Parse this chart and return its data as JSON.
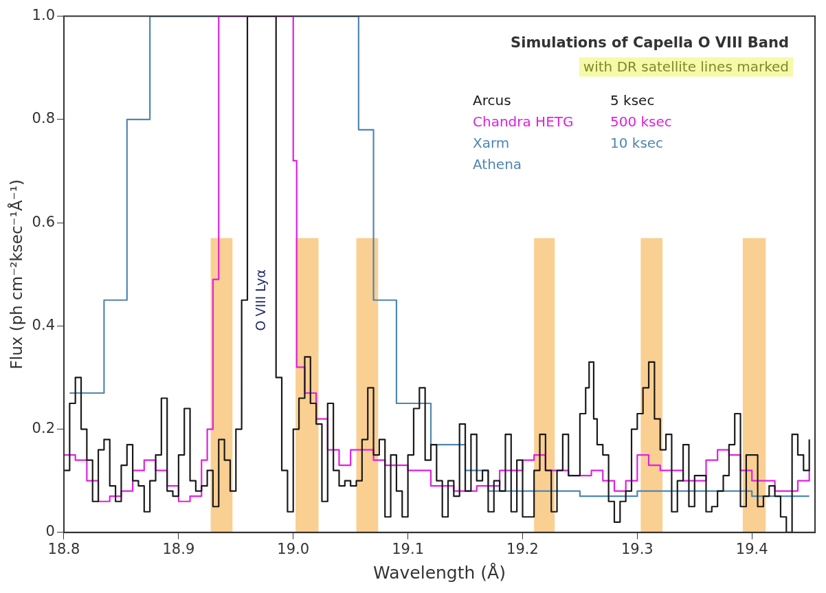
{
  "chart_data": {
    "type": "step",
    "title": "Simulations of Capella O VIII Band",
    "subtitle": "with DR satellite lines marked",
    "xlabel": "Wavelength (Å)",
    "ylabel": "Flux (ph cm⁻²ksec⁻¹Å⁻¹)",
    "xlim": [
      18.8,
      19.455
    ],
    "xticks": [
      {
        "value": 18.8,
        "label": "18.8"
      },
      {
        "value": 18.9,
        "label": "18.9"
      },
      {
        "value": 19,
        "label": "19.0"
      },
      {
        "value": 19.1,
        "label": "19.1"
      },
      {
        "value": 19.2,
        "label": "19.2"
      },
      {
        "value": 19.3,
        "label": "19.3"
      },
      {
        "value": 19.4,
        "label": "19.4"
      }
    ],
    "ylim": [
      0,
      1
    ],
    "yticks": [
      0,
      {
        "value": 0.2,
        "label": "0.2"
      },
      {
        "value": 0.4,
        "label": "0.4"
      },
      {
        "value": 0.6,
        "label": "0.6"
      },
      {
        "value": 0.8,
        "label": "0.8"
      },
      {
        "value": 1,
        "label": "1.0"
      }
    ],
    "grid": false,
    "legend": "top right",
    "series": [
      {
        "name": "Arcus",
        "color": "#1a1a1a",
        "x": [
          18.8,
          18.805,
          18.81,
          18.815,
          18.82,
          18.825,
          18.83,
          18.835,
          18.84,
          18.845,
          18.85,
          18.855,
          18.86,
          18.865,
          18.87,
          18.875,
          18.88,
          18.885,
          18.89,
          18.895,
          18.9,
          18.905,
          18.91,
          18.915,
          18.92,
          18.925,
          18.93,
          18.935,
          18.94,
          18.945,
          18.95,
          18.955,
          18.96,
          18.985,
          18.99,
          18.995,
          19,
          19.005,
          19.01,
          19.015,
          19.02,
          19.025,
          19.03,
          19.035,
          19.04,
          19.045,
          19.05,
          19.055,
          19.06,
          19.065,
          19.07,
          19.075,
          19.08,
          19.085,
          19.09,
          19.095,
          19.1,
          19.105,
          19.11,
          19.115,
          19.12,
          19.125,
          19.13,
          19.135,
          19.14,
          19.145,
          19.15,
          19.155,
          19.16,
          19.165,
          19.17,
          19.175,
          19.18,
          19.185,
          19.19,
          19.195,
          19.2,
          19.205,
          19.21,
          19.215,
          19.22,
          19.225,
          19.23,
          19.235,
          19.24,
          19.245,
          19.25,
          19.255,
          19.258,
          19.262,
          19.265,
          19.27,
          19.275,
          19.28,
          19.285,
          19.29,
          19.295,
          19.3,
          19.305,
          19.31,
          19.315,
          19.32,
          19.325,
          19.33,
          19.335,
          19.34,
          19.345,
          19.35,
          19.355,
          19.36,
          19.365,
          19.37,
          19.375,
          19.38,
          19.385,
          19.39,
          19.395,
          19.4,
          19.405,
          19.41,
          19.415,
          19.42,
          19.425,
          19.43,
          19.435,
          19.44,
          19.445,
          19.45
        ],
        "values": [
          0.12,
          0.25,
          0.3,
          0.2,
          0.14,
          0.06,
          0.16,
          0.18,
          0.09,
          0.06,
          0.13,
          0.17,
          0.1,
          0.09,
          0.04,
          0.1,
          0.15,
          0.26,
          0.08,
          0.07,
          0.15,
          0.24,
          0.1,
          0.08,
          0.09,
          0.12,
          0.05,
          0.18,
          0.14,
          0.08,
          0.2,
          0.45,
          1,
          0.3,
          0.12,
          0.04,
          0.2,
          0.26,
          0.34,
          0.25,
          0.21,
          0.06,
          0.25,
          0.12,
          0.09,
          0.1,
          0.09,
          0.1,
          0.18,
          0.28,
          0.15,
          0.18,
          0.03,
          0.15,
          0.08,
          0.03,
          0.15,
          0.24,
          0.28,
          0.14,
          0.17,
          0.1,
          0.03,
          0.1,
          0.07,
          0.21,
          0.08,
          0.19,
          0.1,
          0.12,
          0.04,
          0.1,
          0.08,
          0.19,
          0.04,
          0.14,
          0.03,
          0.03,
          0.12,
          0.19,
          0.12,
          0.04,
          0.12,
          0.19,
          0.11,
          0.11,
          0.23,
          0.28,
          0.33,
          0.22,
          0.17,
          0.15,
          0.06,
          0.02,
          0.06,
          0.08,
          0.2,
          0.23,
          0.28,
          0.33,
          0.22,
          0.16,
          0.19,
          0.04,
          0.1,
          0.17,
          0.05,
          0.11,
          0.11,
          0.04,
          0.05,
          0.08,
          0.11,
          0.17,
          0.23,
          0.05,
          0.15,
          0.15,
          0.05,
          0.07,
          0.09,
          0.07,
          0.03,
          0,
          0.19,
          0.15,
          0.12,
          0.18
        ]
      },
      {
        "name": "Chandra HETG",
        "color": "#e020e0",
        "x": [
          18.8,
          18.81,
          18.82,
          18.83,
          18.84,
          18.85,
          18.86,
          18.87,
          18.88,
          18.89,
          18.9,
          18.91,
          18.92,
          18.925,
          18.93,
          18.935,
          19,
          19.003,
          19.01,
          19.02,
          19.03,
          19.04,
          19.05,
          19.07,
          19.08,
          19.1,
          19.12,
          19.14,
          19.16,
          19.18,
          19.2,
          19.21,
          19.22,
          19.24,
          19.26,
          19.27,
          19.28,
          19.29,
          19.3,
          19.31,
          19.32,
          19.34,
          19.36,
          19.37,
          19.38,
          19.39,
          19.4,
          19.42,
          19.44,
          19.45
        ],
        "values": [
          0.15,
          0.14,
          0.1,
          0.06,
          0.07,
          0.08,
          0.12,
          0.14,
          0.12,
          0.09,
          0.06,
          0.07,
          0.14,
          0.2,
          0.49,
          1,
          0.72,
          0.32,
          0.27,
          0.22,
          0.16,
          0.13,
          0.16,
          0.14,
          0.13,
          0.12,
          0.09,
          0.08,
          0.09,
          0.12,
          0.14,
          0.15,
          0.12,
          0.11,
          0.12,
          0.1,
          0.08,
          0.1,
          0.15,
          0.13,
          0.12,
          0.1,
          0.14,
          0.16,
          0.15,
          0.12,
          0.1,
          0.08,
          0.1,
          0.12
        ]
      },
      {
        "name": "Xarm",
        "color": "#4f86b0",
        "x": [
          18.805,
          18.835,
          18.855,
          18.875,
          19.057,
          19.07,
          19.09,
          19.12,
          19.15,
          19.17,
          19.25,
          19.3,
          19.4,
          19.45
        ],
        "values": [
          0.27,
          0.45,
          0.8,
          1,
          0.78,
          0.45,
          0.25,
          0.17,
          0.12,
          0.08,
          0.07,
          0.08,
          0.07,
          0.07
        ]
      }
    ],
    "bands": [
      {
        "axis": "x",
        "from": 18.928,
        "to": 18.947,
        "color": "#f9c77f"
      },
      {
        "axis": "x",
        "from": 19.002,
        "to": 19.022,
        "color": "#f9c77f"
      },
      {
        "axis": "x",
        "from": 19.055,
        "to": 19.074,
        "color": "#f9c77f"
      },
      {
        "axis": "x",
        "from": 19.21,
        "to": 19.228,
        "color": "#f9c77f"
      },
      {
        "axis": "x",
        "from": 19.303,
        "to": 19.322,
        "color": "#f9c77f"
      },
      {
        "axis": "x",
        "from": 19.392,
        "to": 19.412,
        "color": "#f9c77f"
      }
    ],
    "annotations": [
      "5 ksec",
      "500 ksec",
      "10 ksec",
      "Athena",
      "O VIII Lyα"
    ]
  }
}
